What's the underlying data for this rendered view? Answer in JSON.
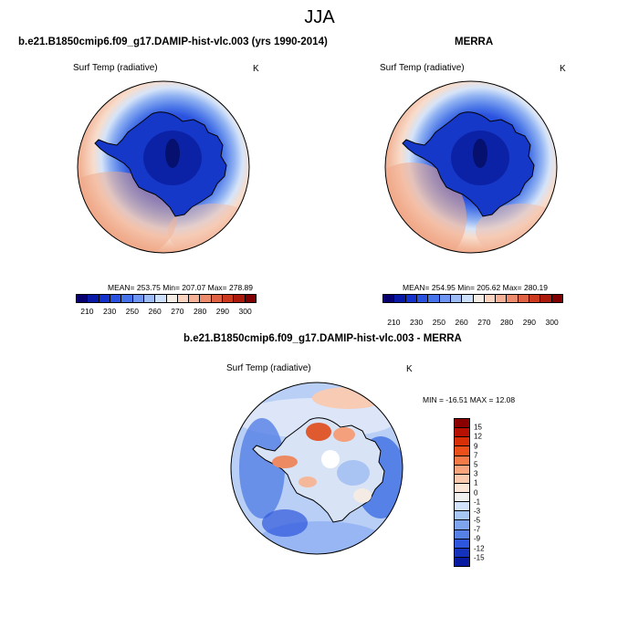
{
  "main_title": "JJA",
  "panels": [
    {
      "title": "b.e21.B1850cmip6.f09_g17.DAMIP-hist-vlc.003 (yrs 1990-2014)",
      "variable": "Surf Temp (radiative)",
      "units": "K",
      "stats": "MEAN= 253.75  Min= 207.07  Max= 278.89"
    },
    {
      "title": "MERRA",
      "variable": "Surf Temp (radiative)",
      "units": "K",
      "stats": "MEAN= 254.95  Min= 205.62  Max= 280.19"
    },
    {
      "title": "b.e21.B1850cmip6.f09_g17.DAMIP-hist-vlc.003 - MERRA",
      "variable": "Surf Temp (radiative)",
      "units": "K",
      "stats": "MIN = -16.51 MAX =  12.08"
    }
  ],
  "abs_colorbar": {
    "tick_labels": [
      "210",
      "230",
      "250",
      "260",
      "270",
      "280",
      "290",
      "300"
    ],
    "colors": [
      "#08006e",
      "#0a1aa8",
      "#1533cc",
      "#2a52e0",
      "#4573ec",
      "#6e96f2",
      "#9dbcf6",
      "#cde0fb",
      "#f4ede6",
      "#fbd3c1",
      "#f5b096",
      "#ec8c6c",
      "#e06244",
      "#cc3a20",
      "#ab1a0a",
      "#800000"
    ]
  },
  "diff_colorbar": {
    "tick_labels": [
      "15",
      "12",
      "9",
      "7",
      "5",
      "3",
      "1",
      "0",
      "-1",
      "-3",
      "-5",
      "-7",
      "-9",
      "-12",
      "-15"
    ],
    "colors": [
      "#8a0000",
      "#b51000",
      "#d82f06",
      "#ec5018",
      "#f47a48",
      "#f8a47c",
      "#fbcaae",
      "#fbe6d8",
      "#f0f0f0",
      "#d2e2fa",
      "#a8c6f4",
      "#7ea4ee",
      "#5580e6",
      "#2d56dc",
      "#1432bc",
      "#081aa0"
    ]
  },
  "chart_data": [
    {
      "type": "heatmap",
      "title": "b.e21.B1850cmip6.f09_g17.DAMIP-hist-vlc.003 (yrs 1990-2014)",
      "subtitle": "Surf Temp (radiative)",
      "units": "K",
      "projection": "south-polar stereographic",
      "mean": 253.75,
      "min": 207.07,
      "max": 278.89,
      "levels": [
        210,
        215,
        220,
        225,
        230,
        235,
        240,
        245,
        250,
        255,
        260,
        265,
        270,
        275,
        280,
        285,
        290,
        295,
        300
      ]
    },
    {
      "type": "heatmap",
      "title": "MERRA",
      "subtitle": "Surf Temp (radiative)",
      "units": "K",
      "projection": "south-polar stereographic",
      "mean": 254.95,
      "min": 205.62,
      "max": 280.19,
      "levels": [
        210,
        215,
        220,
        225,
        230,
        235,
        240,
        245,
        250,
        255,
        260,
        265,
        270,
        275,
        280,
        285,
        290,
        295,
        300
      ]
    },
    {
      "type": "heatmap",
      "title": "b.e21.B1850cmip6.f09_g17.DAMIP-hist-vlc.003 - MERRA",
      "subtitle": "Surf Temp (radiative)",
      "units": "K",
      "projection": "south-polar stereographic",
      "min": -16.51,
      "max": 12.08,
      "levels": [
        -15,
        -12,
        -9,
        -7,
        -5,
        -3,
        -1,
        0,
        1,
        3,
        5,
        7,
        9,
        12,
        15
      ]
    }
  ]
}
